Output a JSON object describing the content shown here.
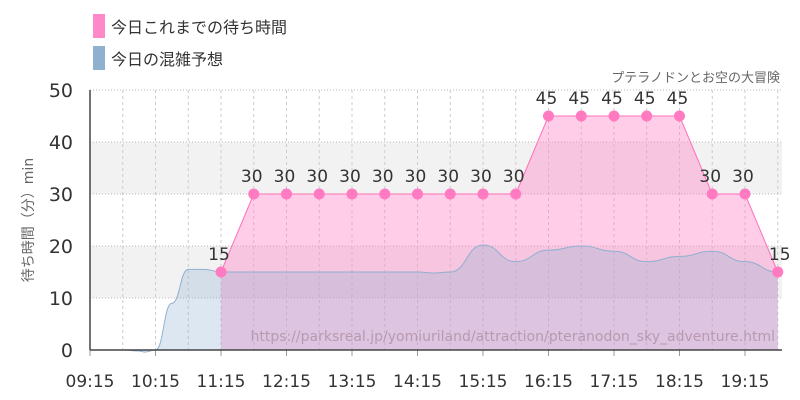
{
  "chart_data": {
    "type": "area",
    "title": "プテラノドンとお空の大冒険",
    "ylabel": "待ち時間（分）min",
    "xlabel": "",
    "ylim": [
      0,
      50
    ],
    "yticks": [
      0,
      10,
      20,
      30,
      40,
      50
    ],
    "xticks": [
      "09:15",
      "10:15",
      "11:15",
      "12:15",
      "13:15",
      "14:15",
      "15:15",
      "16:15",
      "17:15",
      "18:15",
      "19:15"
    ],
    "watermark": "https://parksreal.jp/yomiuriland/attraction/pteranodon_sky_adventure.html",
    "legend_position": "top-left",
    "series": [
      {
        "name": "今日これまでの待ち時間",
        "color": "#ff88c8",
        "x": [
          "11:15",
          "11:45",
          "12:15",
          "12:45",
          "13:15",
          "13:45",
          "14:15",
          "14:45",
          "15:15",
          "15:45",
          "16:15",
          "16:45",
          "17:15",
          "17:45",
          "18:15",
          "18:45",
          "19:15",
          "19:45"
        ],
        "values": [
          15,
          30,
          30,
          30,
          30,
          30,
          30,
          30,
          30,
          30,
          45,
          45,
          45,
          45,
          45,
          30,
          30,
          15
        ],
        "labels": [
          "15",
          "30",
          "30",
          "30",
          "30",
          "30",
          "30",
          "30",
          "30",
          "30",
          "45",
          "45",
          "45",
          "45",
          "45",
          "30",
          "30",
          "15"
        ]
      },
      {
        "name": "今日の混雑予想",
        "color": "#8fb0cf",
        "x": [
          "09:15",
          "09:45",
          "10:00",
          "10:05",
          "10:15",
          "10:30",
          "10:45",
          "11:00",
          "11:15",
          "11:45",
          "12:15",
          "12:45",
          "13:15",
          "13:45",
          "14:15",
          "14:30",
          "14:45",
          "15:15",
          "15:45",
          "16:15",
          "16:45",
          "17:15",
          "17:45",
          "18:15",
          "18:45",
          "19:15",
          "19:45"
        ],
        "values": [
          0,
          0,
          -0.2,
          -0.4,
          0,
          9,
          15.5,
          15.5,
          15,
          15,
          15,
          15,
          15,
          15,
          15,
          14.8,
          15,
          20.2,
          17,
          19.2,
          20,
          19,
          17,
          18,
          19,
          17,
          15
        ]
      }
    ]
  }
}
